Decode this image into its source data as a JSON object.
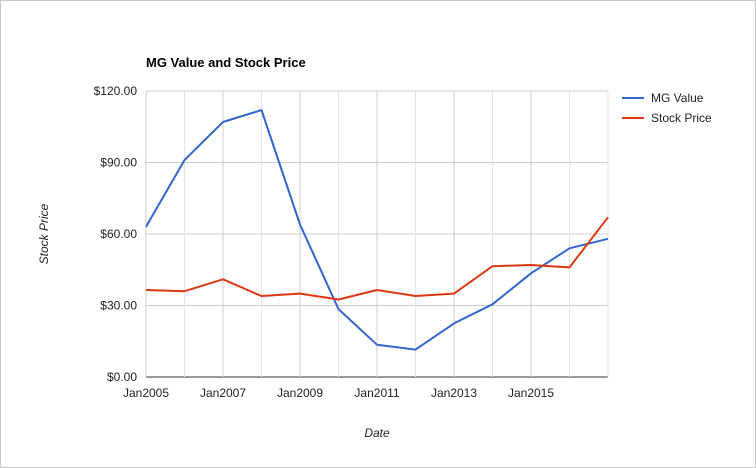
{
  "chart_data": {
    "type": "line",
    "title": "MG Value and Stock Price",
    "xlabel": "Date",
    "ylabel": "Stock Price",
    "x": [
      2005,
      2006,
      2007,
      2008,
      2009,
      2010,
      2011,
      2012,
      2013,
      2014,
      2015,
      2016,
      2017
    ],
    "xlim": [
      2005,
      2017
    ],
    "ylim": [
      0,
      120
    ],
    "x_ticks": [
      {
        "value": 2005,
        "label": "Jan2005"
      },
      {
        "value": 2007,
        "label": "Jan2007"
      },
      {
        "value": 2009,
        "label": "Jan2009"
      },
      {
        "value": 2011,
        "label": "Jan2011"
      },
      {
        "value": 2013,
        "label": "Jan2013"
      },
      {
        "value": 2015,
        "label": "Jan2015"
      }
    ],
    "y_ticks": [
      {
        "value": 0,
        "label": "$0.00"
      },
      {
        "value": 30,
        "label": "$30.00"
      },
      {
        "value": 60,
        "label": "$60.00"
      },
      {
        "value": 90,
        "label": "$90.00"
      },
      {
        "value": 120,
        "label": "$120.00"
      }
    ],
    "grid": true,
    "legend_position": "right",
    "series": [
      {
        "name": "MG Value",
        "color": "#3366cc",
        "values": [
          63,
          91,
          107,
          112,
          64,
          28.5,
          13.5,
          11.5,
          22.5,
          30.5,
          43.5,
          54,
          58
        ]
      },
      {
        "name": "Stock Price",
        "color": "#dc3912",
        "values": [
          36.5,
          36,
          41,
          34,
          35,
          32.5,
          36.5,
          34,
          35,
          46.5,
          47,
          46,
          67
        ]
      }
    ]
  }
}
